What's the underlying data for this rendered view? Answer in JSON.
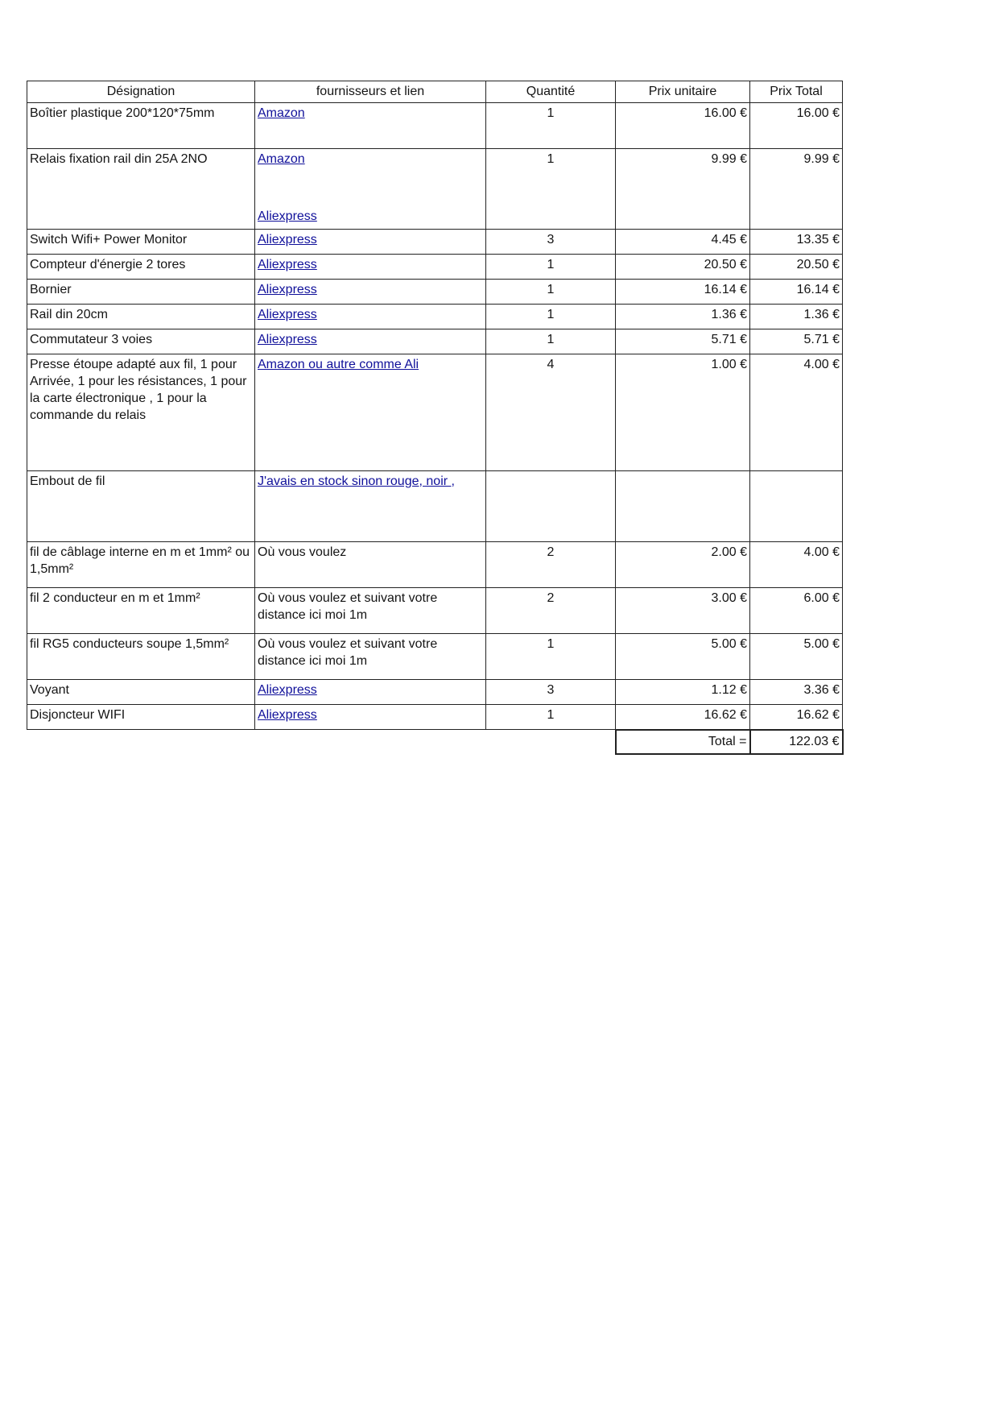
{
  "colors": {
    "link_blue": "#10109a",
    "border_black": "#222222",
    "text_black": "#141414",
    "page_background": "#ffffff"
  },
  "table": {
    "headers": [
      "Désignation",
      "fournisseurs et lien",
      "Quantité",
      "Prix unitaire",
      "Prix Total"
    ],
    "rows": [
      {
        "designation": "Boîtier plastique 200*120*75mm",
        "supplier": {
          "lines": [
            {
              "text": "Amazon ",
              "link": true
            }
          ]
        },
        "quantity": "1",
        "unit_price": "16.00 €",
        "total_price": "16.00 €",
        "size": "m"
      },
      {
        "designation": "Relais fixation rail din 25A 2NO",
        "supplier": {
          "lines": [
            {
              "text": "Amazon ",
              "link": true
            },
            {
              "spacer": true
            },
            {
              "text": "Aliexpress",
              "link": true
            }
          ]
        },
        "quantity": "1",
        "unit_price": "9.99 €",
        "total_price": "9.99 €",
        "size": "xl"
      },
      {
        "designation": "Switch Wifi+ Power Monitor",
        "supplier": {
          "lines": [
            {
              "text": "Aliexpress",
              "link": true
            }
          ]
        },
        "quantity": "3",
        "unit_price": "4.45 €",
        "total_price": "13.35 €",
        "size": "s"
      },
      {
        "designation": "Compteur d'énergie 2 tores",
        "supplier": {
          "lines": [
            {
              "text": "Aliexpress",
              "link": true
            }
          ]
        },
        "quantity": "1",
        "unit_price": "20.50 €",
        "total_price": "20.50 €",
        "size": "s"
      },
      {
        "designation": "Bornier",
        "supplier": {
          "lines": [
            {
              "text": "Aliexpress",
              "link": true
            }
          ]
        },
        "quantity": "1",
        "unit_price": "16.14 €",
        "total_price": "16.14 €",
        "size": "s"
      },
      {
        "designation": "Rail din 20cm",
        "supplier": {
          "lines": [
            {
              "text": "Aliexpress",
              "link": true
            }
          ]
        },
        "quantity": "1",
        "unit_price": "1.36 €",
        "total_price": "1.36 €",
        "size": "s"
      },
      {
        "designation": "Commutateur 3 voies",
        "supplier": {
          "lines": [
            {
              "text": "Aliexpress",
              "link": true
            }
          ]
        },
        "quantity": "1",
        "unit_price": "5.71 €",
        "total_price": "5.71 €",
        "size": "s"
      },
      {
        "designation": "Presse étoupe adapté aux fil, 1 pour Arrivée, 1 pour les résistances, 1 pour la carte électronique , 1 pour la commande du relais",
        "supplier": {
          "lines": [
            {
              "text": "Amazon ou autre comme Ali",
              "link": true
            }
          ]
        },
        "quantity": "4",
        "unit_price": "1.00 €",
        "total_price": "4.00 €",
        "size": "xxl"
      },
      {
        "designation": "Embout de fil",
        "supplier": {
          "lines": [
            {
              "text": "J'avais en stock sinon rouge, noir ,",
              "link": true
            }
          ]
        },
        "quantity": "",
        "unit_price": "",
        "total_price": "",
        "size": "l"
      },
      {
        "designation": "fil de câblage interne en m et 1mm² ou 1,5mm²",
        "supplier": {
          "lines": [
            {
              "text": "Où vous voulez",
              "link": false
            }
          ]
        },
        "quantity": "2",
        "unit_price": "2.00 €",
        "total_price": "4.00 €",
        "size": "m"
      },
      {
        "designation": "fil 2 conducteur en m et 1mm²",
        "supplier": {
          "lines": [
            {
              "text": "Où vous voulez et suivant votre distance ici moi 1m",
              "link": false
            }
          ]
        },
        "quantity": "2",
        "unit_price": "3.00 €",
        "total_price": "6.00 €",
        "size": "m"
      },
      {
        "designation": "fil RG5 conducteurs soupe 1,5mm²",
        "supplier": {
          "lines": [
            {
              "text": "Où vous voulez et suivant votre distance ici moi 1m",
              "link": false
            }
          ]
        },
        "quantity": "1",
        "unit_price": "5.00 €",
        "total_price": "5.00 €",
        "size": "m"
      },
      {
        "designation": "Voyant",
        "supplier": {
          "lines": [
            {
              "text": "Aliexpress",
              "link": true
            }
          ]
        },
        "quantity": "3",
        "unit_price": "1.12 €",
        "total_price": "3.36 €",
        "size": "s"
      },
      {
        "designation": "Disjoncteur WIFI",
        "supplier": {
          "lines": [
            {
              "text": "Aliexpress",
              "link": true
            }
          ]
        },
        "quantity": "1",
        "unit_price": "16.62 €",
        "total_price": "16.62 €",
        "size": "s"
      }
    ],
    "total_label": "Total =",
    "total_value": "122.03 €"
  }
}
